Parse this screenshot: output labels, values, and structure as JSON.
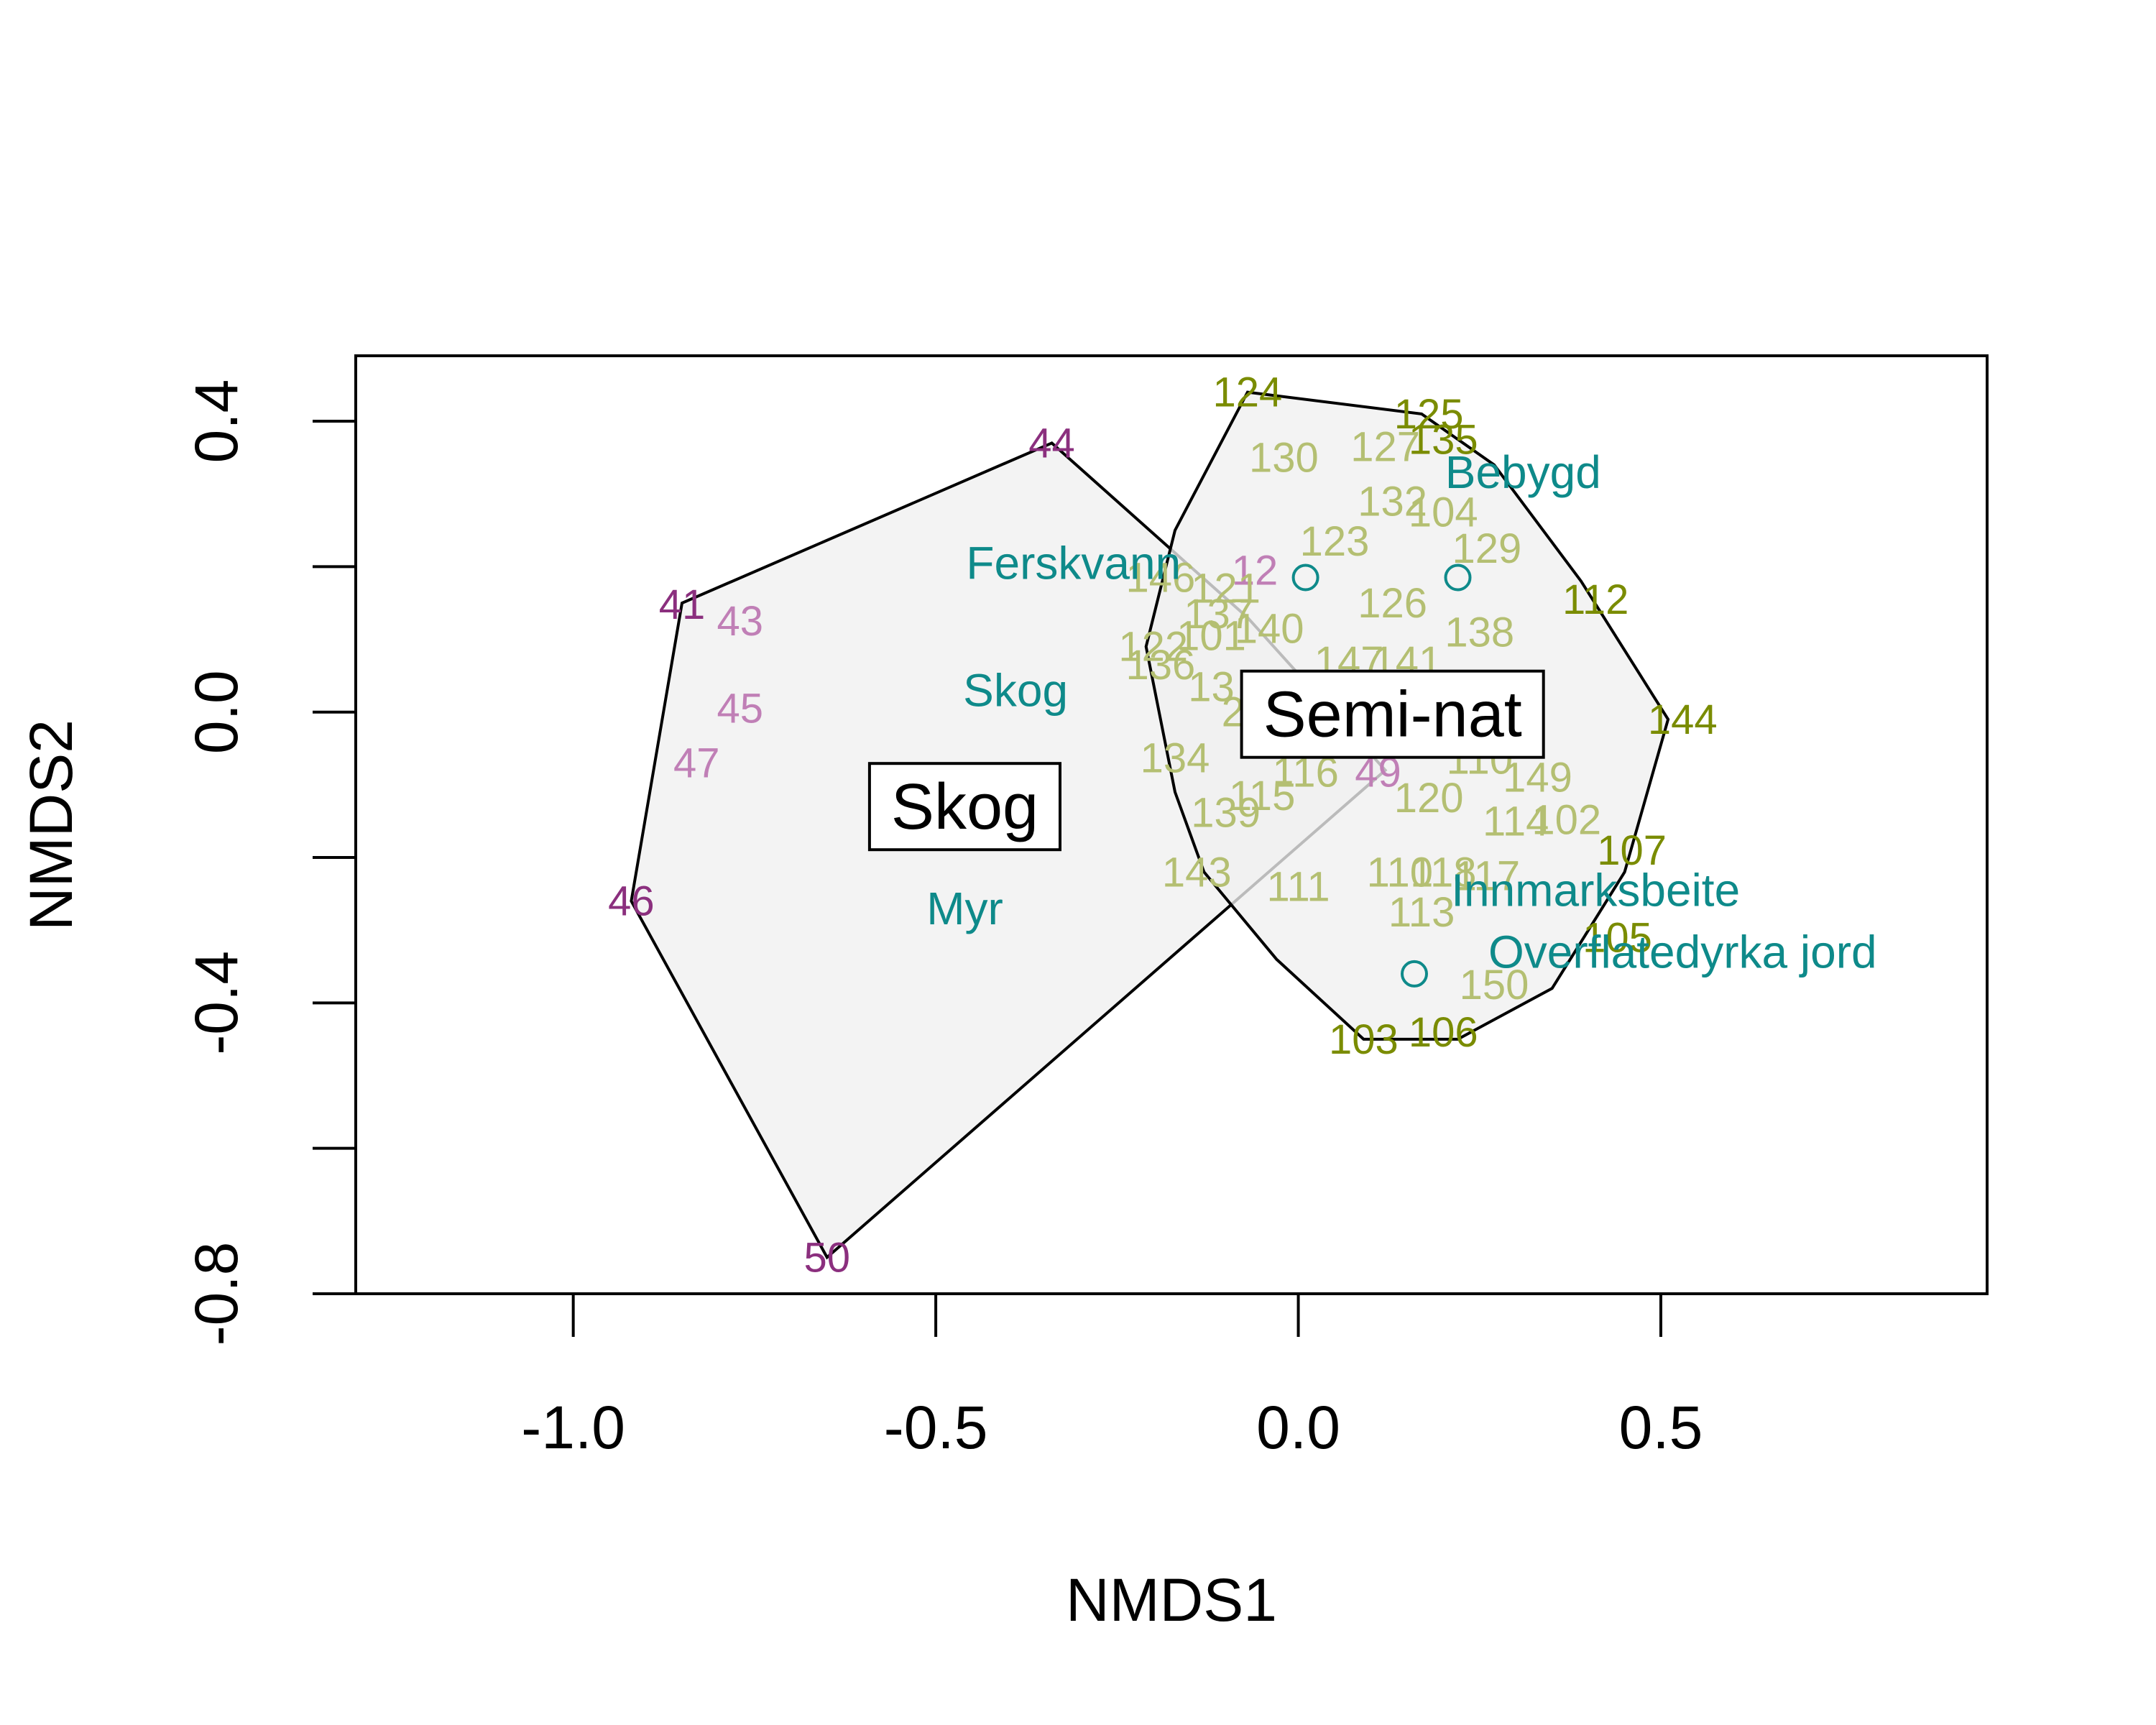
{
  "chart_data": {
    "type": "scatter",
    "xlabel": "NMDS1",
    "ylabel": "NMDS2",
    "xlim": [
      -1.3,
      0.95
    ],
    "ylim": [
      -0.8,
      0.49
    ],
    "x_ticks": [
      -1.0,
      -0.5,
      0.0,
      0.5
    ],
    "x_tick_labels": [
      "-1.0",
      "-0.5",
      "0.0",
      "0.5"
    ],
    "y_ticks": [
      -0.8,
      -0.6,
      -0.4,
      -0.2,
      0.0,
      0.2,
      0.4
    ],
    "y_tick_labels": [
      "-0.8",
      "",
      "-0.4",
      "",
      "0.0",
      "",
      "0.4"
    ],
    "grid": false,
    "colors": {
      "skog_hull_site": "#8B2F7E",
      "skog_site": "#C07FB6",
      "semi_hull_site": "#7A8C00",
      "semi_site": "#B4BF72",
      "env": "#0E8A8A",
      "hull_fill": "#F0F0F0",
      "hull_stroke": "#000000"
    },
    "hulls": [
      {
        "label": "Skog",
        "label_x": -0.46,
        "label_y": -0.13,
        "vertices": [
          [
            -0.34,
            0.37
          ],
          [
            -0.85,
            0.15
          ],
          [
            -0.92,
            -0.26
          ],
          [
            -0.65,
            -0.75
          ],
          [
            0.12,
            -0.08
          ],
          [
            -0.07,
            0.13
          ]
        ]
      },
      {
        "label": "Semi-nat",
        "label_x": 0.13,
        "label_y": -0.003,
        "vertices": [
          [
            -0.07,
            0.44
          ],
          [
            0.17,
            0.41
          ],
          [
            0.27,
            0.34
          ],
          [
            0.39,
            0.18
          ],
          [
            0.51,
            -0.01
          ],
          [
            0.45,
            -0.22
          ],
          [
            0.35,
            -0.38
          ],
          [
            0.22,
            -0.45
          ],
          [
            0.09,
            -0.45
          ],
          [
            -0.03,
            -0.34
          ],
          [
            -0.13,
            -0.22
          ],
          [
            -0.17,
            -0.11
          ],
          [
            -0.21,
            0.09
          ],
          [
            -0.17,
            0.25
          ]
        ]
      }
    ],
    "env_vectors": [
      {
        "label": "Bebygd",
        "label_x": 0.31,
        "label_y": 0.33,
        "point": null
      },
      {
        "label": "Ferskvann",
        "label_x": -0.31,
        "label_y": 0.205,
        "point": [
          0.01,
          0.185
        ]
      },
      {
        "label": "",
        "label_x": null,
        "label_y": null,
        "point": [
          0.22,
          0.185
        ]
      },
      {
        "label": "Skog",
        "label_x": -0.39,
        "label_y": 0.03,
        "point": null
      },
      {
        "label": "Myr",
        "label_x": -0.46,
        "label_y": -0.27,
        "point": null
      },
      {
        "label": "Innmarksbeite",
        "label_x": 0.41,
        "label_y": -0.245,
        "point": null
      },
      {
        "label": "Overflatedyrka jord",
        "label_x": 0.53,
        "label_y": -0.33,
        "point": [
          0.16,
          -0.36
        ]
      }
    ],
    "sites": [
      {
        "label": "44",
        "x": -0.34,
        "y": 0.37,
        "group": "skog",
        "hull": true
      },
      {
        "label": "41",
        "x": -0.85,
        "y": 0.148,
        "group": "skog",
        "hull": true
      },
      {
        "label": "43",
        "x": -0.77,
        "y": 0.125,
        "group": "skog",
        "hull": false
      },
      {
        "label": "45",
        "x": -0.77,
        "y": 0.005,
        "group": "skog",
        "hull": false
      },
      {
        "label": "47",
        "x": -0.83,
        "y": -0.07,
        "group": "skog",
        "hull": false
      },
      {
        "label": "46",
        "x": -0.92,
        "y": -0.26,
        "group": "skog",
        "hull": true
      },
      {
        "label": "50",
        "x": -0.65,
        "y": -0.75,
        "group": "skog",
        "hull": true
      },
      {
        "label": "49",
        "x": 0.11,
        "y": -0.083,
        "group": "skog",
        "hull": false
      },
      {
        "label": "12",
        "x": -0.06,
        "y": 0.195,
        "group": "skog",
        "hull": false
      },
      {
        "label": "124",
        "x": -0.07,
        "y": 0.44,
        "group": "semi",
        "hull": true
      },
      {
        "label": "125",
        "x": 0.18,
        "y": 0.41,
        "group": "semi",
        "hull": true
      },
      {
        "label": "135",
        "x": 0.2,
        "y": 0.375,
        "group": "semi",
        "hull": true
      },
      {
        "label": "130",
        "x": -0.02,
        "y": 0.35,
        "group": "semi",
        "hull": false
      },
      {
        "label": "127",
        "x": 0.12,
        "y": 0.365,
        "group": "semi",
        "hull": false
      },
      {
        "label": "132",
        "x": 0.13,
        "y": 0.29,
        "group": "semi",
        "hull": false
      },
      {
        "label": "104",
        "x": 0.2,
        "y": 0.275,
        "group": "semi",
        "hull": false
      },
      {
        "label": "123",
        "x": 0.05,
        "y": 0.235,
        "group": "semi",
        "hull": false
      },
      {
        "label": "129",
        "x": 0.26,
        "y": 0.225,
        "group": "semi",
        "hull": false
      },
      {
        "label": "112",
        "x": 0.41,
        "y": 0.155,
        "group": "semi",
        "hull": true
      },
      {
        "label": "126",
        "x": 0.13,
        "y": 0.15,
        "group": "semi",
        "hull": false
      },
      {
        "label": "138",
        "x": 0.25,
        "y": 0.11,
        "group": "semi",
        "hull": false
      },
      {
        "label": "146",
        "x": -0.19,
        "y": 0.185,
        "group": "semi",
        "hull": false
      },
      {
        "label": "121",
        "x": -0.1,
        "y": 0.17,
        "group": "semi",
        "hull": false
      },
      {
        "label": "137",
        "x": -0.11,
        "y": 0.135,
        "group": "semi",
        "hull": false
      },
      {
        "label": "101",
        "x": -0.12,
        "y": 0.105,
        "group": "semi",
        "hull": false
      },
      {
        "label": "140",
        "x": -0.04,
        "y": 0.115,
        "group": "semi",
        "hull": false
      },
      {
        "label": "122",
        "x": -0.2,
        "y": 0.09,
        "group": "semi",
        "hull": false
      },
      {
        "label": "136",
        "x": -0.19,
        "y": 0.065,
        "group": "semi",
        "hull": false
      },
      {
        "label": "13",
        "x": -0.12,
        "y": 0.035,
        "group": "semi",
        "hull": false
      },
      {
        "label": "147",
        "x": 0.07,
        "y": 0.07,
        "group": "semi",
        "hull": false
      },
      {
        "label": "141",
        "x": 0.15,
        "y": 0.07,
        "group": "semi",
        "hull": false
      },
      {
        "label": "144",
        "x": 0.53,
        "y": -0.01,
        "group": "semi",
        "hull": true
      },
      {
        "label": "2",
        "x": -0.09,
        "y": 0.0,
        "group": "semi",
        "hull": false
      },
      {
        "label": "134",
        "x": -0.17,
        "y": -0.063,
        "group": "semi",
        "hull": false
      },
      {
        "label": "110",
        "x": 0.25,
        "y": -0.065,
        "group": "semi",
        "hull": false
      },
      {
        "label": "149",
        "x": 0.33,
        "y": -0.09,
        "group": "semi",
        "hull": false
      },
      {
        "label": "116",
        "x": 0.01,
        "y": -0.083,
        "group": "semi",
        "hull": false
      },
      {
        "label": "115",
        "x": -0.05,
        "y": -0.115,
        "group": "semi",
        "hull": false
      },
      {
        "label": "120",
        "x": 0.18,
        "y": -0.118,
        "group": "semi",
        "hull": false
      },
      {
        "label": "139",
        "x": -0.1,
        "y": -0.138,
        "group": "semi",
        "hull": false
      },
      {
        "label": "114",
        "x": 0.3,
        "y": -0.15,
        "group": "semi",
        "hull": false
      },
      {
        "label": "102",
        "x": 0.37,
        "y": -0.148,
        "group": "semi",
        "hull": false
      },
      {
        "label": "107",
        "x": 0.46,
        "y": -0.19,
        "group": "semi",
        "hull": true
      },
      {
        "label": "143",
        "x": -0.14,
        "y": -0.22,
        "group": "semi",
        "hull": false
      },
      {
        "label": "111",
        "x": 0.0,
        "y": -0.24,
        "group": "semi",
        "hull": false
      },
      {
        "label": "110",
        "x": 0.14,
        "y": -0.22,
        "group": "semi",
        "hull": false
      },
      {
        "label": "118",
        "x": 0.2,
        "y": -0.22,
        "group": "semi",
        "hull": false
      },
      {
        "label": "117",
        "x": 0.26,
        "y": -0.225,
        "group": "semi",
        "hull": false
      },
      {
        "label": "113",
        "x": 0.17,
        "y": -0.275,
        "group": "semi",
        "hull": false
      },
      {
        "label": "105",
        "x": 0.44,
        "y": -0.31,
        "group": "semi",
        "hull": true
      },
      {
        "label": "150",
        "x": 0.27,
        "y": -0.375,
        "group": "semi",
        "hull": false
      },
      {
        "label": "103",
        "x": 0.09,
        "y": -0.45,
        "group": "semi",
        "hull": true
      },
      {
        "label": "106",
        "x": 0.2,
        "y": -0.44,
        "group": "semi",
        "hull": true
      }
    ]
  }
}
